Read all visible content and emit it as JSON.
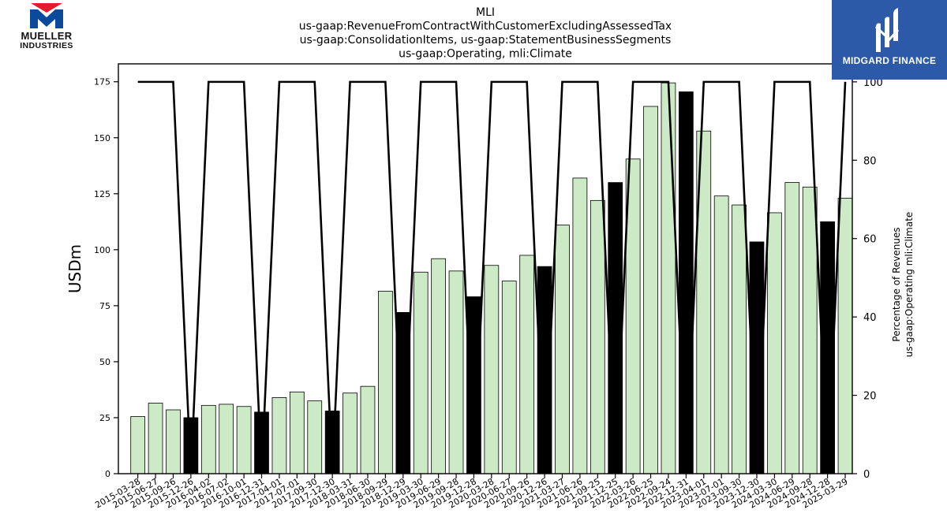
{
  "title_lines": [
    "MLI",
    "us-gaap:RevenueFromContractWithCustomerExcludingAssessedTax",
    "us-gaap:ConsolidationItems, us-gaap:StatementBusinessSegments",
    "us-gaap:Operating, mli:Climate"
  ],
  "logos": {
    "left": {
      "line1": "MUELLER",
      "line2": "INDUSTRIES",
      "colors": {
        "red": "#e31b2f",
        "blue": "#0a4a9c"
      }
    },
    "right": {
      "text": "MIDGARD FINANCE",
      "background": "#2c5aa8"
    }
  },
  "chart_data": {
    "type": "bar",
    "ylabel": "USDm",
    "y2label_lines": [
      "Percentage of Revenues",
      "us-gaap:Operating mli:Climate"
    ],
    "ylim": [
      0,
      183
    ],
    "y2lim": [
      0,
      104.6
    ],
    "yticks": [
      0,
      25,
      50,
      75,
      100,
      125,
      150,
      175
    ],
    "y2ticks": [
      0,
      20,
      40,
      60,
      80,
      100
    ],
    "grid": false,
    "colors": {
      "bar_quarter": "#cdeac6",
      "bar_annual": "#000000",
      "bar_edge": "#000000",
      "line": "#000000"
    },
    "categories": [
      "2015-03-28",
      "2015-06-27",
      "2015-09-26",
      "2015-12-26",
      "2016-04-02",
      "2016-07-02",
      "2016-10-01",
      "2016-12-31",
      "2017-04-01",
      "2017-07-01",
      "2017-09-30",
      "2017-12-30",
      "2018-03-31",
      "2018-06-30",
      "2018-09-29",
      "2018-12-29",
      "2019-03-30",
      "2019-06-29",
      "2019-09-28",
      "2019-12-28",
      "2020-03-28",
      "2020-06-27",
      "2020-09-26",
      "2020-12-26",
      "2021-03-27",
      "2021-06-26",
      "2021-09-25",
      "2021-12-25",
      "2022-03-26",
      "2022-06-25",
      "2022-09-24",
      "2022-12-31",
      "2023-04-01",
      "2023-07-01",
      "2023-09-30",
      "2023-12-30",
      "2024-03-30",
      "2024-06-29",
      "2024-09-28",
      "2024-12-28",
      "2025-03-29"
    ],
    "series": [
      {
        "values": [
          25.5,
          31.5,
          28.5,
          25,
          30.5,
          31,
          30,
          27.5,
          34,
          36.5,
          32.5,
          28,
          36,
          39,
          81.5,
          72,
          90,
          96,
          90.5,
          79,
          93,
          86,
          97.5,
          92.5,
          111,
          132,
          122,
          130,
          140.5,
          164,
          174.5,
          170.5,
          153,
          124,
          120,
          103.5,
          116.5,
          130,
          128,
          112.5,
          123
        ],
        "annual": [
          false,
          false,
          false,
          true,
          false,
          false,
          false,
          true,
          false,
          false,
          false,
          true,
          false,
          false,
          false,
          true,
          false,
          false,
          false,
          true,
          false,
          false,
          false,
          true,
          false,
          false,
          false,
          true,
          false,
          false,
          false,
          true,
          false,
          false,
          false,
          true,
          false,
          false,
          false,
          true,
          false
        ]
      },
      {
        "axis": "right",
        "values": [
          100,
          100,
          100,
          0,
          100,
          100,
          100,
          0,
          100,
          100,
          100,
          0,
          100,
          100,
          100,
          0,
          100,
          100,
          100,
          0,
          100,
          100,
          100,
          0,
          100,
          100,
          100,
          0,
          100,
          100,
          100,
          0,
          100,
          100,
          100,
          0,
          100,
          100,
          100,
          0,
          100
        ]
      }
    ]
  }
}
